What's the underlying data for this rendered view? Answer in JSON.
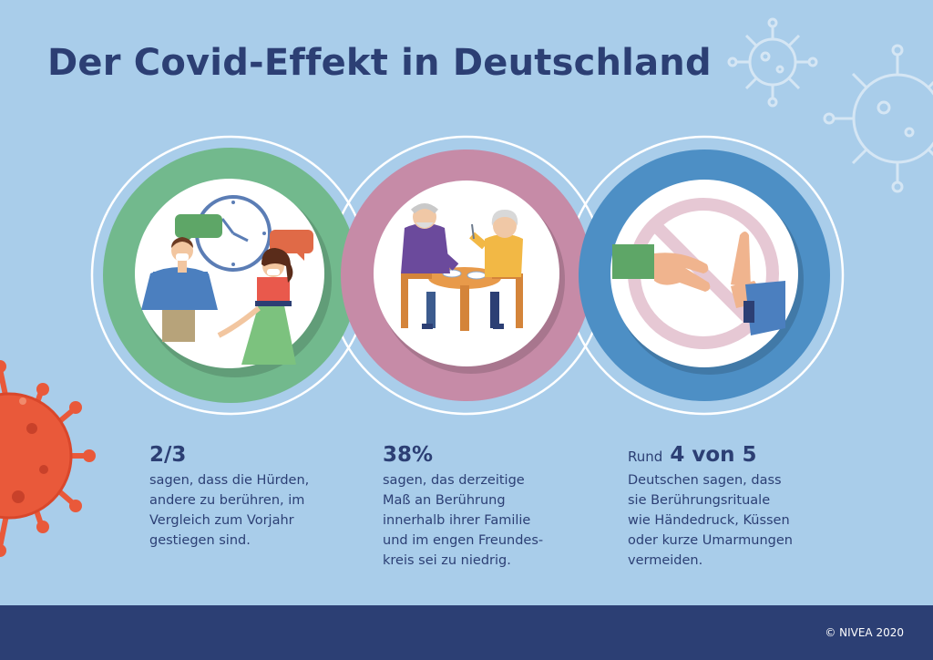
{
  "title": "Der Covid-Effekt in Deutschland",
  "stats": [
    {
      "headline": "2/3",
      "text": "sagen, dass die Hürden,\nandere zu berühren, im\nVergleich zum Vorjahr\ngestiegen sind."
    },
    {
      "headline": "38%",
      "text": "sagen, das derzeitige\nMaß an Berührung\ninnerhalb ihrer Familie\nund im engen Freundes-\nkreis sei zu niedrig."
    },
    {
      "prefix": "Rund",
      "headline": "4 von 5",
      "text": "Deutschen sagen, dass\nsie Berührungsrituale\nwie Händedruck, Küssen\noder kurze Umarmungen\nvermeiden."
    }
  ],
  "illustrations": [
    {
      "icon": "conversation-with-masks-icon",
      "ring_color": "#72b98d"
    },
    {
      "icon": "elderly-couple-dining-icon",
      "ring_color": "#c68ba7"
    },
    {
      "icon": "no-handshake-icon",
      "ring_color": "#4d8fc5"
    }
  ],
  "footer": {
    "copyright": "© NIVEA 2020"
  },
  "colors": {
    "background": "#a9cdea",
    "navy": "#2c3f74",
    "virus": "#e9593a"
  }
}
